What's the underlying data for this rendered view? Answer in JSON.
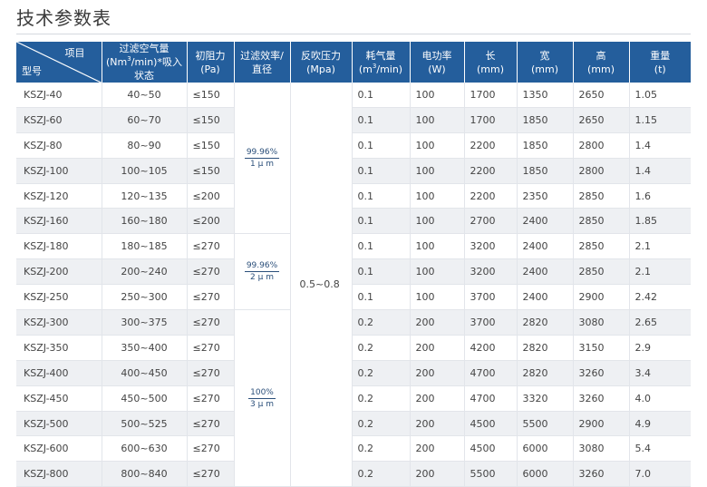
{
  "title": "技术参数表",
  "header": {
    "corner_top": "项目",
    "corner_bottom": "型号",
    "cols": [
      {
        "l1": "过滤空气量",
        "l2a": "(Nm",
        "sup": "3",
        "l2b": "/min)*吸入状态"
      },
      {
        "l1": "初阻力",
        "l2a": "(Pa)",
        "sup": "",
        "l2b": ""
      },
      {
        "l1": "过滤效率/",
        "l2a": "直径",
        "sup": "",
        "l2b": ""
      },
      {
        "l1": "反吹压力",
        "l2a": "(Mpa)",
        "sup": "",
        "l2b": ""
      },
      {
        "l1": "耗气量",
        "l2a": "(m",
        "sup": "3",
        "l2b": "/min)"
      },
      {
        "l1": "电功率",
        "l2a": "(W)",
        "sup": "",
        "l2b": ""
      },
      {
        "l1": "长",
        "l2a": "(mm)",
        "sup": "",
        "l2b": ""
      },
      {
        "l1": "宽",
        "l2a": "(mm)",
        "sup": "",
        "l2b": ""
      },
      {
        "l1": "高",
        "l2a": "(mm)",
        "sup": "",
        "l2b": ""
      },
      {
        "l1": "重量",
        "l2a": "(t)",
        "sup": "",
        "l2b": ""
      }
    ]
  },
  "efficiency": [
    {
      "num": "99.96%",
      "den": "1 μ m"
    },
    {
      "num": "99.96%",
      "den": "2 μ m"
    },
    {
      "num": "100%",
      "den": "3 μ m"
    }
  ],
  "pressure": "0.5~0.8",
  "rows": [
    {
      "model": "KSZJ-40",
      "air": "40~50",
      "resist": "≤150",
      "gas": "0.1",
      "power": "100",
      "len": "1700",
      "wid": "1350",
      "hei": "2650",
      "wt": "1.05"
    },
    {
      "model": "KSZJ-60",
      "air": "60~70",
      "resist": "≤150",
      "gas": "0.1",
      "power": "100",
      "len": "1700",
      "wid": "1850",
      "hei": "2650",
      "wt": "1.15"
    },
    {
      "model": "KSZJ-80",
      "air": "80~90",
      "resist": "≤150",
      "gas": "0.1",
      "power": "100",
      "len": "2200",
      "wid": "1850",
      "hei": "2800",
      "wt": "1.4"
    },
    {
      "model": "KSZJ-100",
      "air": "100~105",
      "resist": "≤150",
      "gas": "0.1",
      "power": "100",
      "len": "2200",
      "wid": "1850",
      "hei": "2800",
      "wt": "1.4"
    },
    {
      "model": "KSZJ-120",
      "air": "120~135",
      "resist": "≤200",
      "gas": "0.1",
      "power": "100",
      "len": "2200",
      "wid": "2350",
      "hei": "2850",
      "wt": "1.6"
    },
    {
      "model": "KSZJ-160",
      "air": "160~180",
      "resist": "≤200",
      "gas": "0.1",
      "power": "100",
      "len": "2700",
      "wid": "2400",
      "hei": "2850",
      "wt": "1.85"
    },
    {
      "model": "KSZJ-180",
      "air": "180~185",
      "resist": "≤270",
      "gas": "0.1",
      "power": "100",
      "len": "3200",
      "wid": "2400",
      "hei": "2850",
      "wt": "2.1"
    },
    {
      "model": "KSZJ-200",
      "air": "200~240",
      "resist": "≤270",
      "gas": "0.1",
      "power": "100",
      "len": "3200",
      "wid": "2400",
      "hei": "2850",
      "wt": "2.1"
    },
    {
      "model": "KSZJ-250",
      "air": "250~300",
      "resist": "≤270",
      "gas": "0.1",
      "power": "100",
      "len": "3700",
      "wid": "2400",
      "hei": "2900",
      "wt": "2.42"
    },
    {
      "model": "KSZJ-300",
      "air": "300~375",
      "resist": "≤270",
      "gas": "0.2",
      "power": "200",
      "len": "3700",
      "wid": "2820",
      "hei": "3080",
      "wt": "2.65"
    },
    {
      "model": "KSZJ-350",
      "air": "350~400",
      "resist": "≤270",
      "gas": "0.2",
      "power": "200",
      "len": "4200",
      "wid": "2820",
      "hei": "3150",
      "wt": "2.9"
    },
    {
      "model": "KSZJ-400",
      "air": "400~450",
      "resist": "≤270",
      "gas": "0.2",
      "power": "200",
      "len": "4700",
      "wid": "2820",
      "hei": "3260",
      "wt": "3.4"
    },
    {
      "model": "KSZJ-450",
      "air": "450~500",
      "resist": "≤270",
      "gas": "0.2",
      "power": "200",
      "len": "4700",
      "wid": "3320",
      "hei": "3260",
      "wt": "4.0"
    },
    {
      "model": "KSZJ-500",
      "air": "500~525",
      "resist": "≤270",
      "gas": "0.2",
      "power": "200",
      "len": "4500",
      "wid": "5500",
      "hei": "2900",
      "wt": "4.9"
    },
    {
      "model": "KSZJ-600",
      "air": "600~630",
      "resist": "≤270",
      "gas": "0.2",
      "power": "200",
      "len": "4500",
      "wid": "6000",
      "hei": "3080",
      "wt": "5.4"
    },
    {
      "model": "KSZJ-800",
      "air": "800~840",
      "resist": "≤270",
      "gas": "0.2",
      "power": "200",
      "len": "5500",
      "wid": "6000",
      "hei": "3260",
      "wt": "7.0"
    }
  ]
}
